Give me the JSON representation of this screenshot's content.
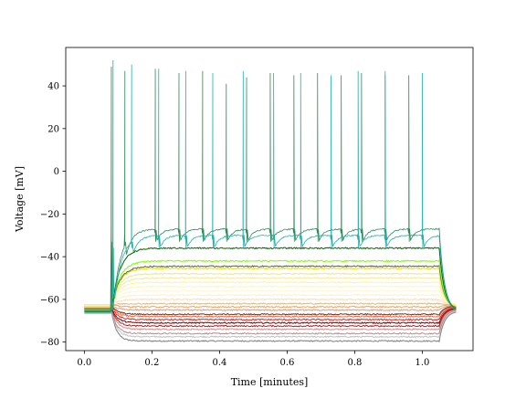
{
  "chart_data": {
    "type": "line",
    "title": "",
    "xlabel": "Time [minutes]",
    "ylabel": "Voltage [mV]",
    "xlim": [
      -0.055,
      1.15
    ],
    "ylim": [
      -84,
      58
    ],
    "xticks": [
      0.0,
      0.2,
      0.4,
      0.6,
      0.8,
      1.0
    ],
    "yticks": [
      -80,
      -60,
      -40,
      -20,
      0,
      20,
      40
    ],
    "xtick_labels": [
      "0.0",
      "0.2",
      "0.4",
      "0.6",
      "0.8",
      "1.0"
    ],
    "ytick_labels": [
      "−80",
      "−60",
      "−40",
      "−20",
      "0",
      "20",
      "40"
    ],
    "grid": false,
    "legend": "none",
    "stim_on": 0.08,
    "stim_off": 1.05,
    "series": [
      {
        "color": "#7f7f7f",
        "rest": -65.5,
        "plateau": -79.5
      },
      {
        "color": "#c0c0c0",
        "rest": -65.0,
        "plateau": -77.5
      },
      {
        "color": "#b39090",
        "rest": -64.8,
        "plateau": -76.0
      },
      {
        "color": "#d88f8f",
        "rest": -64.5,
        "plateau": -74.0
      },
      {
        "color": "#a52a2a",
        "rest": -64.2,
        "plateau": -72.5
      },
      {
        "color": "#8b0000",
        "rest": -64.0,
        "plateau": -71.0
      },
      {
        "color": "#d62728",
        "rest": -63.6,
        "plateau": -69.5
      },
      {
        "color": "#ff6347",
        "rest": -63.3,
        "plateau": -68.0
      },
      {
        "color": "#6b3a1f",
        "rest": -63.0,
        "plateau": -67.0
      },
      {
        "color": "#e9967a",
        "rest": -62.8,
        "plateau": -65.0
      },
      {
        "color": "#f4a460",
        "rest": -62.5,
        "plateau": -63.5
      },
      {
        "color": "#deb887",
        "rest": -62.5,
        "plateau": -62.0
      },
      {
        "color": "#ffdab9",
        "rest": -62.5,
        "plateau": -60.0
      },
      {
        "color": "#fff0c8",
        "rest": -62.6,
        "plateau": -58.0
      },
      {
        "color": "#fff5d6",
        "rest": -62.7,
        "plateau": -56.0
      },
      {
        "color": "#fdf6c0",
        "rest": -62.8,
        "plateau": -54.0
      },
      {
        "color": "#fcf4a3",
        "rest": -63.0,
        "plateau": -52.0
      },
      {
        "color": "#f5e79e",
        "rest": -63.2,
        "plateau": -50.0
      },
      {
        "color": "#e6e6a0",
        "rest": -63.5,
        "plateau": -48.0
      },
      {
        "color": "#ffd700",
        "rest": -64.0,
        "plateau": -45.5
      },
      {
        "color": "#556b2f",
        "rest": -64.5,
        "plateau": -44.5
      },
      {
        "color": "#7cfc00",
        "rest": -65.0,
        "plateau": -42.0
      },
      {
        "color": "#006400",
        "rest": -65.5,
        "plateau": -36.0
      },
      {
        "color": "#2e8b57",
        "rest": -66.0,
        "plateau": -27.0,
        "spikes": [
          [
            0.08,
            49
          ],
          [
            0.12,
            47
          ],
          [
            0.21,
            48
          ],
          [
            0.28,
            46
          ],
          [
            0.35,
            47
          ],
          [
            0.42,
            41
          ],
          [
            0.48,
            44
          ],
          [
            0.55,
            46
          ],
          [
            0.62,
            45
          ],
          [
            0.69,
            46
          ],
          [
            0.76,
            45
          ],
          [
            0.82,
            46
          ],
          [
            0.89,
            45
          ],
          [
            0.96,
            45
          ]
        ]
      },
      {
        "color": "#20b2aa",
        "rest": -66.5,
        "plateau": -30.0,
        "spikes": [
          [
            0.085,
            52
          ],
          [
            0.14,
            50
          ],
          [
            0.22,
            48
          ],
          [
            0.3,
            47
          ],
          [
            0.38,
            46
          ],
          [
            0.47,
            47
          ],
          [
            0.56,
            46
          ],
          [
            0.64,
            46
          ],
          [
            0.73,
            45
          ],
          [
            0.81,
            47
          ],
          [
            0.89,
            47
          ],
          [
            1.0,
            46
          ]
        ]
      }
    ]
  }
}
